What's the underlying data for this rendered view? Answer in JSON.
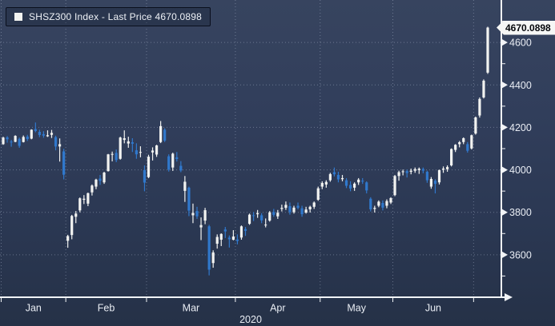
{
  "legend": {
    "text": "SHSZ300 Index - Last Price  4670.0898",
    "swatch_color": "#f2f3f1"
  },
  "price_flag": {
    "value": "4670.0898"
  },
  "colors": {
    "up_candle": "#f2f3f1",
    "down_candle": "#3078cc",
    "grid": "#b9c3d8",
    "axis": "#f2f4f7",
    "flag_bg": "#f6f7f6",
    "flag_text": "#05070b",
    "background": "#2f3d5a"
  },
  "chart_data": {
    "type": "candlestick",
    "title": "SHSZ300 Index - Last Price 4670.0898",
    "year": "2020",
    "ylim": [
      3400,
      4800
    ],
    "y_ticks": [
      3600,
      3800,
      4000,
      4200,
      4400,
      4600
    ],
    "y_minor_ticks": [
      3500,
      3700,
      3900,
      4100,
      4300,
      4500,
      4700
    ],
    "month_names": {
      "01": "Jan",
      "02": "Feb",
      "03": "Mar",
      "04": "Apr",
      "05": "May",
      "06": "Jun",
      "07": ""
    },
    "last_price": 4670.0898,
    "grid": "dotted",
    "legend_position": "top-left",
    "candle_format": [
      "date",
      "open",
      "high",
      "low",
      "close"
    ],
    "candles": [
      [
        "01-02",
        4121,
        4156,
        4118,
        4152
      ],
      [
        "01-03",
        4153,
        4159,
        4128,
        4144
      ],
      [
        "01-06",
        4133,
        4141,
        4109,
        4129
      ],
      [
        "01-07",
        4132,
        4163,
        4130,
        4160
      ],
      [
        "01-08",
        4146,
        4152,
        4104,
        4113
      ],
      [
        "01-09",
        4131,
        4162,
        4129,
        4155
      ],
      [
        "01-10",
        4157,
        4165,
        4136,
        4145
      ],
      [
        "01-13",
        4147,
        4191,
        4144,
        4189
      ],
      [
        "01-14",
        4192,
        4223,
        4177,
        4183
      ],
      [
        "01-15",
        4179,
        4189,
        4154,
        4164
      ],
      [
        "01-16",
        4168,
        4182,
        4151,
        4161
      ],
      [
        "01-17",
        4158,
        4186,
        4155,
        4163
      ],
      [
        "01-20",
        4165,
        4188,
        4150,
        4174
      ],
      [
        "01-21",
        4154,
        4161,
        4092,
        4110
      ],
      [
        "01-22",
        4110,
        4148,
        4039,
        4121
      ],
      [
        "01-23",
        4087,
        4099,
        3955,
        3977
      ],
      [
        "02-03",
        3666,
        3694,
        3633,
        3688
      ],
      [
        "02-04",
        3693,
        3788,
        3673,
        3783
      ],
      [
        "02-05",
        3779,
        3806,
        3749,
        3794
      ],
      [
        "02-06",
        3809,
        3870,
        3800,
        3866
      ],
      [
        "02-07",
        3859,
        3881,
        3839,
        3864
      ],
      [
        "02-10",
        3841,
        3893,
        3829,
        3890
      ],
      [
        "02-11",
        3894,
        3931,
        3879,
        3926
      ],
      [
        "02-12",
        3921,
        3958,
        3909,
        3954
      ],
      [
        "02-13",
        3959,
        3976,
        3929,
        3948
      ],
      [
        "02-14",
        3941,
        3991,
        3934,
        3987
      ],
      [
        "02-17",
        3994,
        4075,
        3992,
        4073
      ],
      [
        "02-18",
        4071,
        4086,
        4040,
        4075
      ],
      [
        "02-19",
        4080,
        4096,
        4036,
        4046
      ],
      [
        "02-20",
        4052,
        4156,
        4048,
        4152
      ],
      [
        "02-21",
        4141,
        4186,
        4125,
        4149
      ],
      [
        "02-24",
        4124,
        4156,
        4104,
        4134
      ],
      [
        "02-25",
        4130,
        4149,
        4084,
        4123
      ],
      [
        "02-26",
        4092,
        4125,
        4052,
        4073
      ],
      [
        "02-27",
        4081,
        4111,
        4059,
        4084
      ],
      [
        "02-28",
        3999,
        4021,
        3899,
        3940
      ],
      [
        "03-02",
        3966,
        4071,
        3961,
        4062
      ],
      [
        "03-03",
        4082,
        4106,
        4044,
        4091
      ],
      [
        "03-04",
        4072,
        4118,
        4061,
        4115
      ],
      [
        "03-05",
        4131,
        4230,
        4126,
        4206
      ],
      [
        "03-06",
        4189,
        4196,
        4131,
        4138
      ],
      [
        "03-09",
        4064,
        4073,
        3992,
        4001
      ],
      [
        "03-10",
        4011,
        4081,
        3995,
        4076
      ],
      [
        "03-11",
        4059,
        4084,
        4039,
        4051
      ],
      [
        "03-12",
        4019,
        4041,
        3989,
        3997
      ],
      [
        "03-13",
        3901,
        3971,
        3849,
        3944
      ],
      [
        "03-16",
        3916,
        3921,
        3782,
        3808
      ],
      [
        "03-17",
        3786,
        3841,
        3749,
        3797
      ],
      [
        "03-18",
        3806,
        3826,
        3769,
        3781
      ],
      [
        "03-19",
        3729,
        3776,
        3669,
        3740
      ],
      [
        "03-20",
        3761,
        3821,
        3744,
        3810
      ],
      [
        "03-23",
        3734,
        3741,
        3503,
        3530
      ],
      [
        "03-24",
        3561,
        3621,
        3539,
        3611
      ],
      [
        "03-25",
        3652,
        3696,
        3629,
        3684
      ],
      [
        "03-26",
        3671,
        3701,
        3641,
        3698
      ],
      [
        "03-27",
        3719,
        3731,
        3679,
        3710
      ],
      [
        "03-30",
        3681,
        3691,
        3634,
        3673
      ],
      [
        "03-31",
        3671,
        3716,
        3668,
        3686
      ],
      [
        "04-01",
        3672,
        3696,
        3649,
        3665
      ],
      [
        "04-02",
        3681,
        3738,
        3671,
        3734
      ],
      [
        "04-03",
        3721,
        3731,
        3689,
        3713
      ],
      [
        "04-07",
        3746,
        3794,
        3741,
        3789
      ],
      [
        "04-08",
        3786,
        3801,
        3759,
        3783
      ],
      [
        "04-09",
        3791,
        3811,
        3774,
        3796
      ],
      [
        "04-10",
        3786,
        3796,
        3749,
        3762
      ],
      [
        "04-13",
        3741,
        3771,
        3729,
        3742
      ],
      [
        "04-14",
        3761,
        3806,
        3756,
        3800
      ],
      [
        "04-15",
        3801,
        3816,
        3779,
        3788
      ],
      [
        "04-16",
        3781,
        3811,
        3769,
        3798
      ],
      [
        "04-17",
        3816,
        3836,
        3804,
        3821
      ],
      [
        "04-20",
        3821,
        3851,
        3811,
        3835
      ],
      [
        "04-21",
        3829,
        3846,
        3789,
        3801
      ],
      [
        "04-22",
        3801,
        3831,
        3794,
        3822
      ],
      [
        "04-23",
        3831,
        3846,
        3814,
        3821
      ],
      [
        "04-24",
        3819,
        3831,
        3779,
        3791
      ],
      [
        "04-27",
        3799,
        3826,
        3794,
        3813
      ],
      [
        "04-28",
        3814,
        3831,
        3799,
        3826
      ],
      [
        "04-29",
        3826,
        3851,
        3816,
        3846
      ],
      [
        "04-30",
        3859,
        3921,
        3854,
        3913
      ],
      [
        "05-06",
        3921,
        3946,
        3909,
        3938
      ],
      [
        "05-07",
        3931,
        3951,
        3916,
        3943
      ],
      [
        "05-08",
        3951,
        3986,
        3944,
        3980
      ],
      [
        "05-11",
        3989,
        4011,
        3969,
        3979
      ],
      [
        "05-12",
        3976,
        3991,
        3941,
        3955
      ],
      [
        "05-13",
        3956,
        3976,
        3946,
        3961
      ],
      [
        "05-14",
        3951,
        3961,
        3914,
        3925
      ],
      [
        "05-15",
        3929,
        3946,
        3899,
        3912
      ],
      [
        "05-18",
        3916,
        3941,
        3901,
        3935
      ],
      [
        "05-19",
        3941,
        3961,
        3929,
        3954
      ],
      [
        "05-20",
        3949,
        3961,
        3934,
        3945
      ],
      [
        "05-21",
        3941,
        3946,
        3889,
        3903
      ],
      [
        "05-22",
        3864,
        3871,
        3804,
        3814
      ],
      [
        "05-25",
        3816,
        3831,
        3799,
        3821
      ],
      [
        "05-26",
        3831,
        3856,
        3824,
        3850
      ],
      [
        "05-27",
        3844,
        3856,
        3809,
        3822
      ],
      [
        "05-28",
        3831,
        3861,
        3819,
        3853
      ],
      [
        "05-29",
        3846,
        3871,
        3839,
        3867
      ],
      [
        "06-01",
        3881,
        3976,
        3876,
        3971
      ],
      [
        "06-02",
        3971,
        3996,
        3949,
        3989
      ],
      [
        "06-03",
        3991,
        4001,
        3974,
        3993
      ],
      [
        "06-04",
        3994,
        4001,
        3964,
        3985
      ],
      [
        "06-05",
        3991,
        4006,
        3979,
        3996
      ],
      [
        "06-08",
        3996,
        4011,
        3986,
        4003
      ],
      [
        "06-09",
        3999,
        4011,
        3981,
        4005
      ],
      [
        "06-10",
        4004,
        4011,
        3984,
        3996
      ],
      [
        "06-11",
        3991,
        3996,
        3939,
        3951
      ],
      [
        "06-12",
        3921,
        3966,
        3911,
        3957
      ],
      [
        "06-15",
        3949,
        3956,
        3889,
        3934
      ],
      [
        "06-16",
        3941,
        4001,
        3931,
        3999
      ],
      [
        "06-17",
        4001,
        4016,
        3986,
        4006
      ],
      [
        "06-18",
        4003,
        4021,
        3991,
        4013
      ],
      [
        "06-19",
        4021,
        4101,
        4016,
        4098
      ],
      [
        "06-22",
        4094,
        4121,
        4084,
        4118
      ],
      [
        "06-23",
        4121,
        4136,
        4106,
        4130
      ],
      [
        "06-24",
        4131,
        4153,
        4121,
        4149
      ],
      [
        "06-29",
        4121,
        4131,
        4081,
        4090
      ],
      [
        "06-30",
        4101,
        4166,
        4096,
        4163
      ],
      [
        "07-01",
        4171,
        4251,
        4166,
        4247
      ],
      [
        "07-02",
        4256,
        4341,
        4246,
        4334
      ],
      [
        "07-03",
        4341,
        4426,
        4336,
        4420
      ],
      [
        "07-06",
        4458,
        4674,
        4452,
        4670.09
      ]
    ]
  }
}
